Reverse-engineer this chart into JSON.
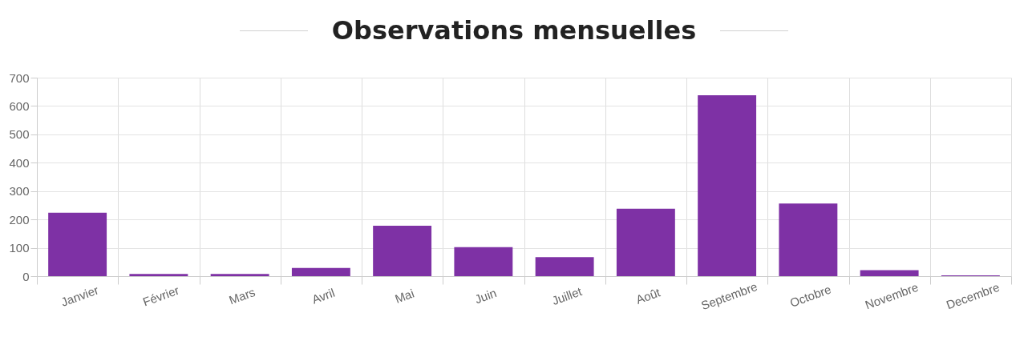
{
  "chart_data": {
    "type": "bar",
    "title": "Observations mensuelles",
    "categories": [
      "Janvier",
      "Février",
      "Mars",
      "Avril",
      "Mai",
      "Juin",
      "Juillet",
      "Août",
      "Septembre",
      "Octobre",
      "Novembre",
      "Decembre"
    ],
    "values": [
      224,
      8,
      8,
      29,
      178,
      102,
      67,
      238,
      638,
      256,
      21,
      3
    ],
    "color": "#7e31a5",
    "ylim": [
      0,
      700
    ],
    "yticks": [
      0,
      100,
      200,
      300,
      400,
      500,
      600,
      700
    ],
    "grid": true
  }
}
